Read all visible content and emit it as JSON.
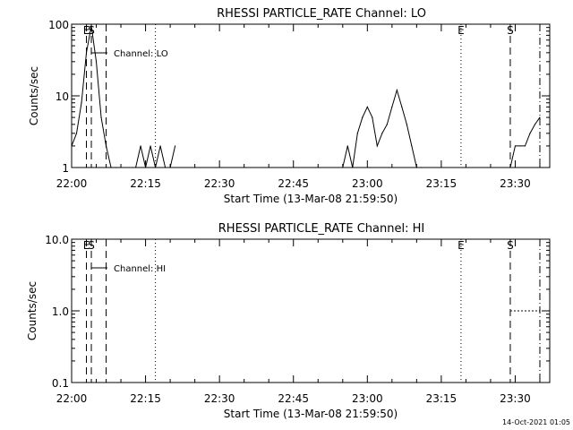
{
  "chart_data": [
    {
      "type": "line",
      "title": "RHESSI PARTICLE_RATE Channel: LO",
      "xlabel": "Start Time (13-Mar-08 21:59:50)",
      "ylabel": "Counts/sec",
      "yscale": "log",
      "xlim": [
        "22:00",
        "23:37"
      ],
      "ylim": [
        1,
        100
      ],
      "x_ticks": [
        "22:00",
        "22:15",
        "22:30",
        "22:45",
        "23:00",
        "23:15",
        "23:30"
      ],
      "y_ticks": [
        "1",
        "10",
        "100"
      ],
      "legend": "Channel: LO",
      "legend_placement": "top-left",
      "markers": [
        {
          "label": "E",
          "time": "22:03",
          "style": "dashed"
        },
        {
          "label": "S",
          "time": "22:04",
          "style": "dashed"
        },
        {
          "label": "",
          "time": "22:07",
          "style": "dashed"
        },
        {
          "label": "",
          "time": "22:17",
          "style": "dotted"
        },
        {
          "label": "E",
          "time": "23:19",
          "style": "dotted"
        },
        {
          "label": "S",
          "time": "23:29",
          "style": "dashed"
        },
        {
          "label": "",
          "time": "23:35",
          "style": "dash-dot"
        }
      ],
      "series": [
        {
          "x": [
            "22:00",
            "22:01",
            "22:02",
            "22:03",
            "22:04",
            "22:05",
            "22:06",
            "22:07",
            "22:08",
            "22:09",
            "22:13",
            "22:14",
            "22:15",
            "22:16",
            "22:17",
            "22:18",
            "22:19",
            "22:20",
            "22:21",
            "22:55",
            "22:56",
            "22:57",
            "22:58",
            "22:59",
            "23:00",
            "23:01",
            "23:02",
            "23:03",
            "23:04",
            "23:05",
            "23:06",
            "23:07",
            "23:08",
            "23:09",
            "23:10",
            "23:11",
            "23:29",
            "23:30",
            "23:31",
            "23:32",
            "23:33",
            "23:34",
            "23:35"
          ],
          "y": [
            2,
            3,
            8,
            40,
            95,
            30,
            5,
            2,
            1,
            1,
            1,
            2,
            1,
            2,
            1,
            2,
            1,
            1,
            2,
            1,
            2,
            1,
            3,
            5,
            7,
            5,
            2,
            3,
            4,
            7,
            12,
            7,
            4,
            2,
            1,
            1,
            1,
            2,
            2,
            2,
            3,
            4,
            5
          ]
        }
      ]
    },
    {
      "type": "line",
      "title": "RHESSI PARTICLE_RATE Channel: HI",
      "xlabel": "Start Time (13-Mar-08 21:59:50)",
      "ylabel": "Counts/sec",
      "yscale": "log",
      "xlim": [
        "22:00",
        "23:37"
      ],
      "ylim": [
        0.1,
        10
      ],
      "x_ticks": [
        "22:00",
        "22:15",
        "22:30",
        "22:45",
        "23:00",
        "23:15",
        "23:30"
      ],
      "y_ticks": [
        "0.1",
        "1.0",
        "10.0"
      ],
      "legend": "Channel: HI",
      "legend_placement": "top-left",
      "markers": [
        {
          "label": "E",
          "time": "22:03",
          "style": "dashed"
        },
        {
          "label": "S",
          "time": "22:04",
          "style": "dashed"
        },
        {
          "label": "",
          "time": "22:07",
          "style": "dashed"
        },
        {
          "label": "",
          "time": "22:17",
          "style": "dotted"
        },
        {
          "label": "E",
          "time": "23:19",
          "style": "dotted"
        },
        {
          "label": "S",
          "time": "23:29",
          "style": "dashed"
        },
        {
          "label": "",
          "time": "23:35",
          "style": "dash-dot"
        }
      ],
      "series": [
        {
          "x": [
            "23:29",
            "23:35"
          ],
          "y": [
            1,
            1
          ],
          "style": "dotted"
        }
      ]
    }
  ],
  "footer": {
    "timestamp": "14-Oct-2021 01:05"
  }
}
